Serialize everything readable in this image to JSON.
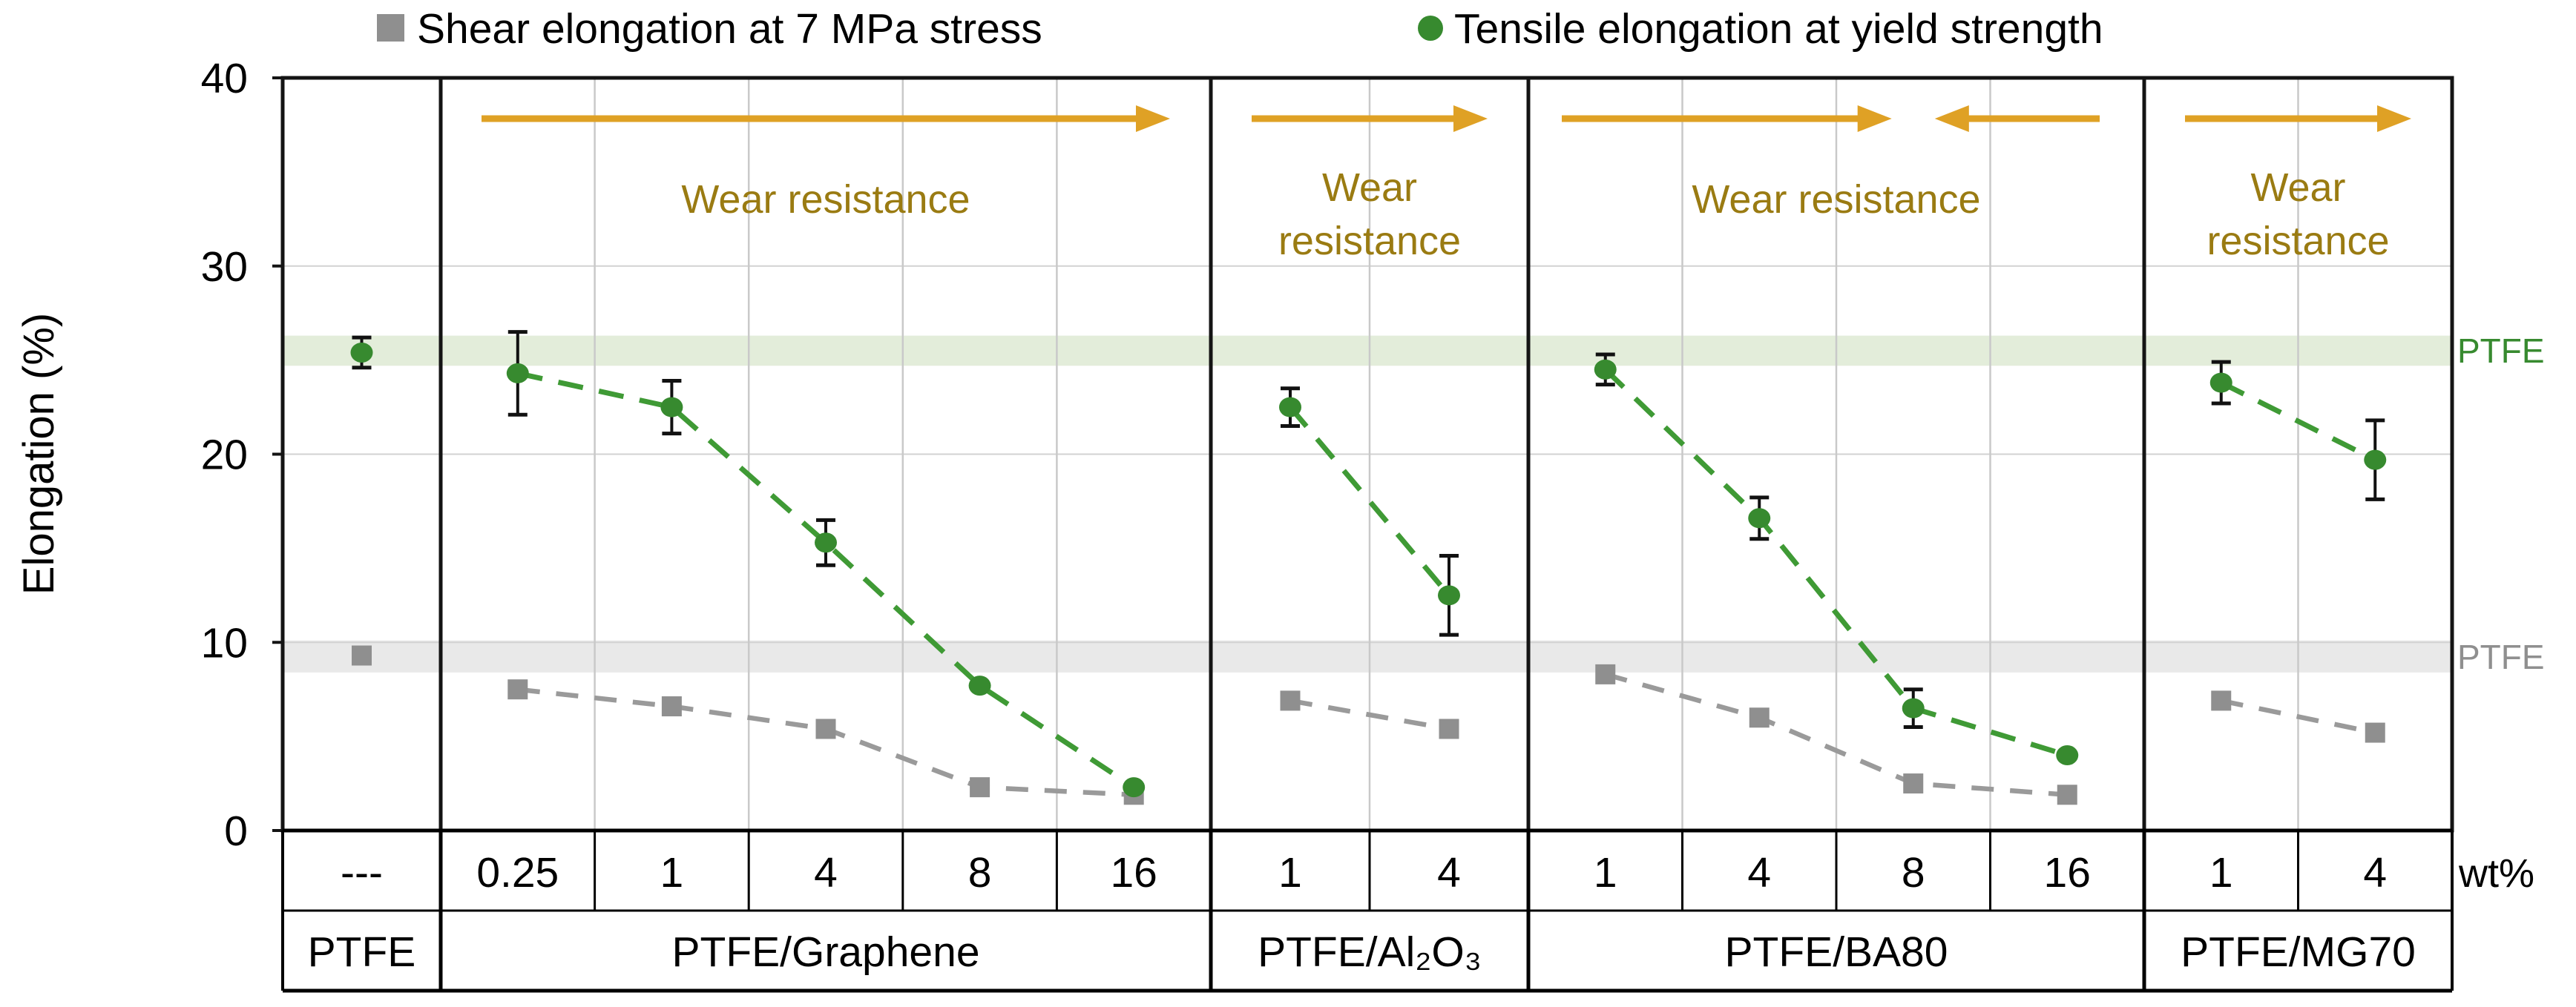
{
  "legend": {
    "items": [
      {
        "label": "Shear elongation at 7 MPa stress",
        "marker": "square-icon",
        "color": "#8f8f8f"
      },
      {
        "label": "Tensile elongation at yield strength",
        "marker": "circle-icon",
        "color": "#378a2f"
      }
    ]
  },
  "y_axis": {
    "title": "Elongation (%)",
    "ticks": [
      "40",
      "30",
      "20",
      "10",
      "0"
    ],
    "min": 0,
    "max": 40
  },
  "x_axis": {
    "unit_label": "wt%"
  },
  "colors": {
    "tensile_green": "#378a2f",
    "tensile_line": "#3f9a35",
    "shear_gray": "#8f8f8f",
    "shear_line": "#9a9a9a",
    "band_green": "#e3edda",
    "band_gray": "#e9e9e9",
    "arrow_gold": "#dfa125",
    "wear_text": "#9a7b12",
    "grid_gray": "#c9c9c9",
    "axis_black": "#141414",
    "error_bar": "#111111"
  },
  "reference_bands": [
    {
      "label": "PTFE",
      "series": "tensile",
      "value": 25.4,
      "low": 24.7,
      "high": 26.3,
      "band_color": "#e3edda",
      "label_color": "#378a2f"
    },
    {
      "label": "PTFE",
      "series": "shear",
      "value": 9.3,
      "low": 8.4,
      "high": 10.1,
      "band_color": "#e9e9e9",
      "label_color": "#8f8f8f"
    }
  ],
  "chart_data": {
    "type": "scatter",
    "ylabel": "Elongation (%)",
    "ylim": [
      0,
      40
    ],
    "grid": true,
    "legend_position": "top",
    "series_names": [
      "Shear elongation at 7 MPa stress",
      "Tensile elongation at yield strength"
    ],
    "x_unit": "wt%",
    "panels": [
      {
        "material": "PTFE",
        "categories": [
          "---"
        ],
        "tensile": [
          25.4
        ],
        "tensile_err": [
          0.8
        ],
        "shear": [
          9.3
        ],
        "wear_annotation": null
      },
      {
        "material": "PTFE/Graphene",
        "categories": [
          "0.25",
          "1",
          "4",
          "8",
          "16"
        ],
        "tensile": [
          24.3,
          22.5,
          15.3,
          7.7,
          2.3
        ],
        "tensile_err": [
          2.2,
          1.4,
          1.2,
          0,
          0
        ],
        "shear": [
          7.5,
          6.6,
          5.4,
          2.3,
          1.9
        ],
        "wear_annotation": {
          "lines": [
            "Wear resistance"
          ],
          "arrows": [
            "right"
          ]
        }
      },
      {
        "material": "PTFE/Al₂O₃",
        "categories": [
          "1",
          "4"
        ],
        "tensile": [
          22.5,
          12.5
        ],
        "tensile_err": [
          1.0,
          2.1
        ],
        "shear": [
          6.9,
          5.4
        ],
        "wear_annotation": {
          "lines": [
            "Wear",
            "resistance"
          ],
          "arrows": [
            "right"
          ]
        }
      },
      {
        "material": "PTFE/BA80",
        "categories": [
          "1",
          "4",
          "8",
          "16"
        ],
        "tensile": [
          24.5,
          16.6,
          6.5,
          4.0
        ],
        "tensile_err": [
          0.8,
          1.1,
          1.0,
          0
        ],
        "shear": [
          8.3,
          6.0,
          2.5,
          1.9
        ],
        "wear_annotation": {
          "lines": [
            "Wear resistance"
          ],
          "arrows": [
            "right",
            "left"
          ]
        }
      },
      {
        "material": "PTFE/MG70",
        "categories": [
          "1",
          "4"
        ],
        "tensile": [
          23.8,
          19.7
        ],
        "tensile_err": [
          1.1,
          2.1
        ],
        "shear": [
          6.9,
          5.2
        ],
        "wear_annotation": {
          "lines": [
            "Wear",
            "resistance"
          ],
          "arrows": [
            "right"
          ]
        }
      }
    ]
  }
}
